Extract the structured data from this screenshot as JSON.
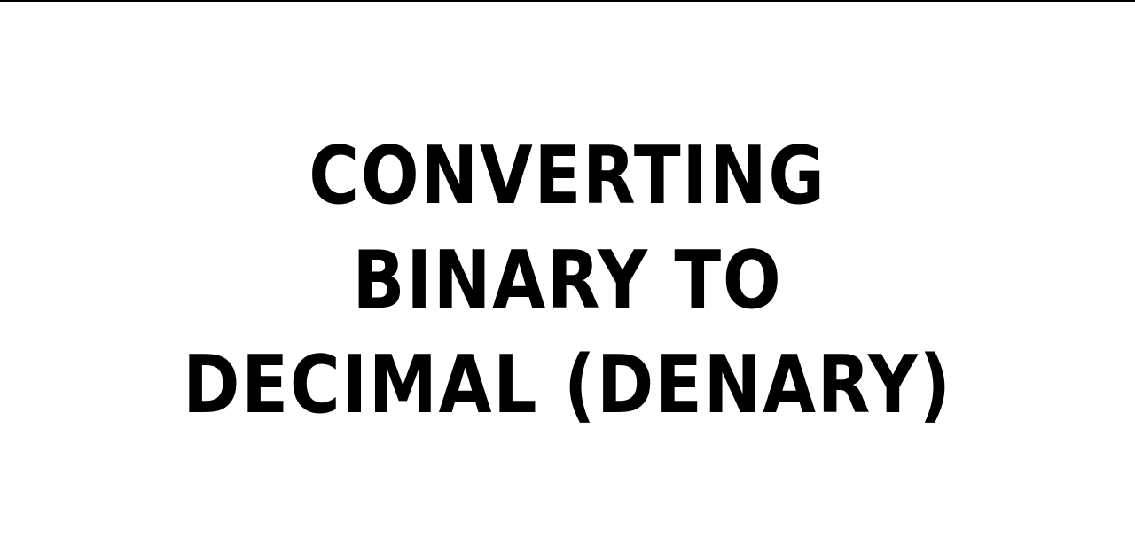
{
  "slide": {
    "title_lines": [
      "CONVERTING",
      "BINARY TO",
      "DECIMAL (DENARY)"
    ]
  },
  "colors": {
    "background": "#ffffff",
    "text": "#000000"
  }
}
